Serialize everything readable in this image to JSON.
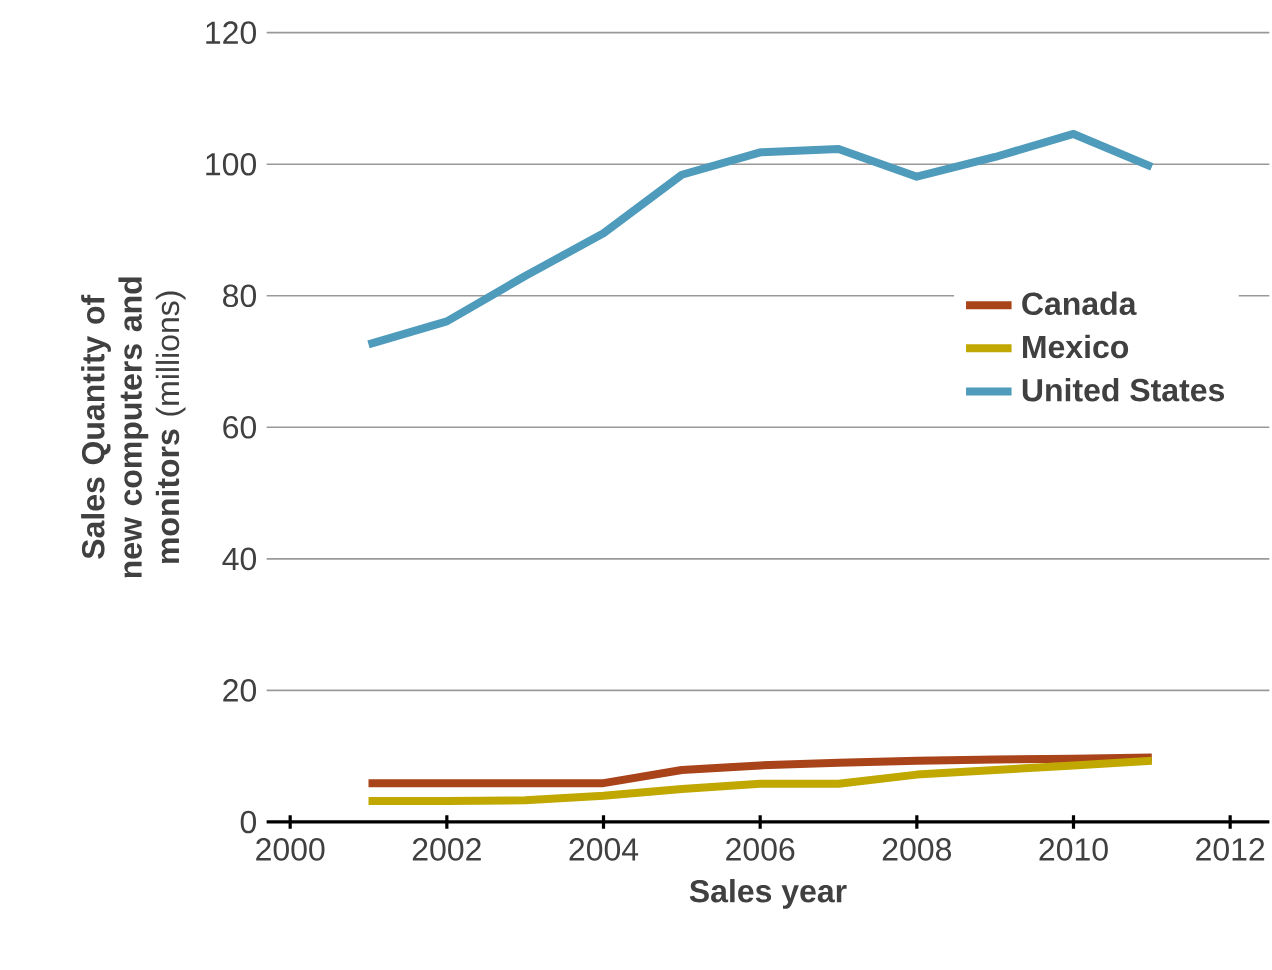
{
  "chart_data": {
    "type": "line",
    "xlabel": "Sales year",
    "ylabel": "**Sales Quantity of new computers and monitors** (millions)",
    "x": [
      2001,
      2002,
      2003,
      2004,
      2005,
      2006,
      2007,
      2008,
      2009,
      2010,
      2011
    ],
    "series": [
      {
        "name": "Canada",
        "color": "#a8431a",
        "values": [
          5.9,
          5.9,
          5.9,
          5.9,
          7.9,
          8.6,
          9.0,
          9.3,
          9.5,
          9.6,
          9.8
        ]
      },
      {
        "name": "Mexico",
        "color": "#c0a800",
        "values": [
          3.2,
          3.2,
          3.3,
          4.0,
          5.0,
          5.8,
          5.8,
          7.2,
          7.9,
          8.6,
          9.3
        ]
      },
      {
        "name": "United States",
        "color": "#4f9bbb",
        "values": [
          72.6,
          76.1,
          83.0,
          89.5,
          98.4,
          101.8,
          102.3,
          98.1,
          101.1,
          104.6,
          99.6
        ]
      }
    ],
    "xlim": [
      1999.7,
      2012.5
    ],
    "ylim": [
      0,
      120
    ],
    "xticks": [
      2000,
      2002,
      2004,
      2006,
      2008,
      2010,
      2012
    ],
    "yticks": [
      0,
      20,
      40,
      60,
      80,
      100,
      120
    ],
    "grid": "y",
    "legend": "right",
    "marker": "none",
    "line_style": "solid"
  }
}
